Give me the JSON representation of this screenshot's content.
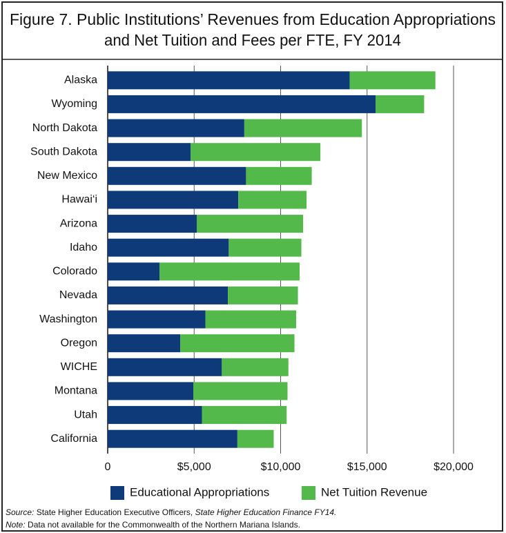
{
  "chart_data": {
    "type": "stacked_barh",
    "title": [
      "Figure 7. Public Institutions’ Revenues from Education Appropriations",
      "and Net Tuition and Fees per FTE, FY 2014"
    ],
    "categories": [
      "Alaska",
      "Wyoming",
      "North Dakota",
      "South Dakota",
      "New Mexico",
      "Hawai‘i",
      "Arizona",
      "Idaho",
      "Colorado",
      "Nevada",
      "Washington",
      "Oregon",
      "WICHE",
      "Montana",
      "Utah",
      "California"
    ],
    "series": [
      {
        "name": "Educational Appropriations",
        "color": "#0e3a7a",
        "values": [
          14000,
          15500,
          7900,
          4800,
          8000,
          7550,
          5150,
          7000,
          3000,
          6950,
          5650,
          4200,
          6600,
          4950,
          5450,
          7500
        ]
      },
      {
        "name": "Net Tuition Revenue",
        "color": "#53b94a",
        "values": [
          4950,
          2800,
          6800,
          7500,
          3800,
          3950,
          6150,
          4200,
          8100,
          4050,
          5250,
          6600,
          3850,
          5450,
          4900,
          2100
        ]
      }
    ],
    "xlim": [
      0,
      20000
    ],
    "xticks": [
      0,
      {
        "value": 5000,
        "label": "$5,000"
      },
      {
        "value": 10000,
        "label": "$10,000"
      },
      {
        "value": 15000,
        "label": "$15,000"
      },
      {
        "value": 20000,
        "label": "$20,000"
      }
    ],
    "grid": true,
    "notes": [
      {
        "label": "Source:",
        "text": " State Higher Education Executive Officers, ",
        "italic_text": "State Higher Education Finance FY14."
      },
      {
        "label": "Note:",
        "text": " Data not available for the Commonwealth of the Northern Mariana Islands."
      }
    ]
  }
}
